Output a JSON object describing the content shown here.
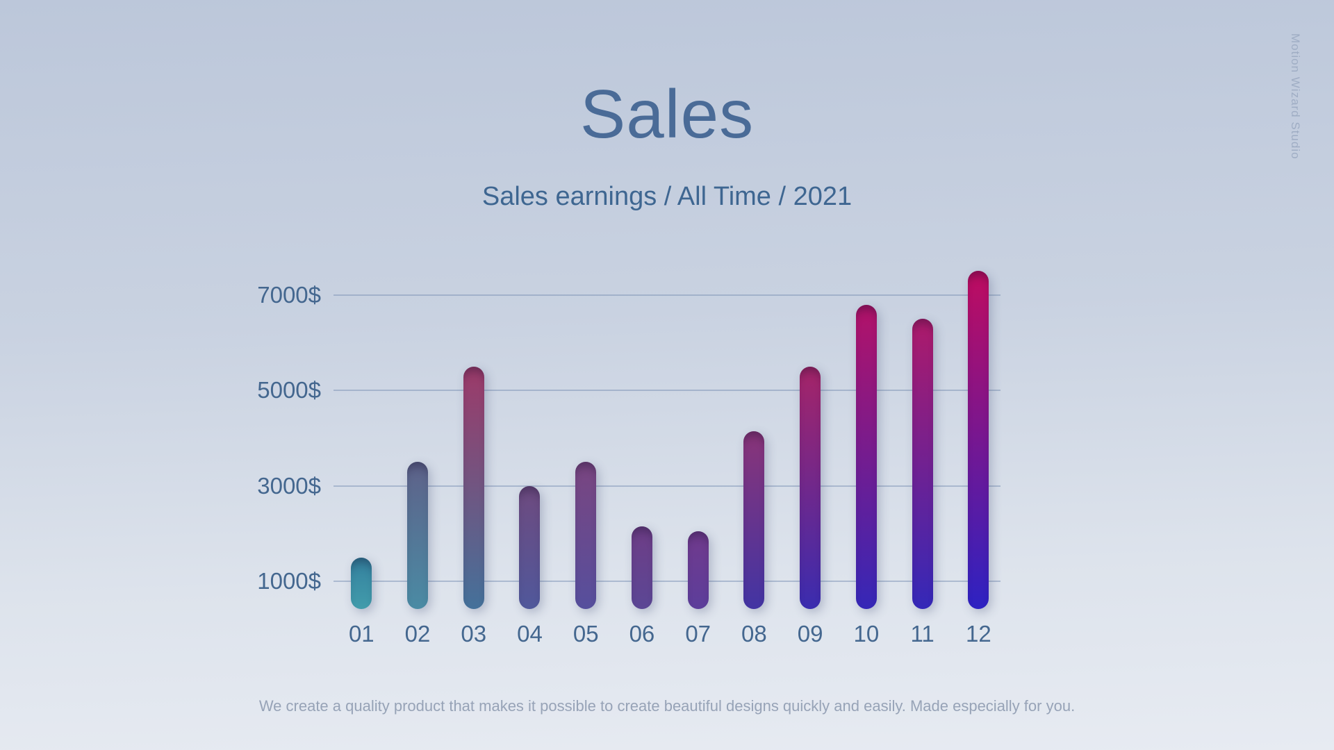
{
  "watermark": "Motion Wizard Studio",
  "header": {
    "title": "Sales",
    "subtitle": "Sales earnings / All Time / 2021"
  },
  "footer": {
    "text": "We create a quality product that makes it possible to create beautiful designs quickly and easily. Made especially for you."
  },
  "colors": {
    "background_top": "#bcc7da",
    "background_bottom": "#e7ebf2",
    "title_text": "#4a6b97",
    "subtitle_text": "#3e6691",
    "axis_label_text": "#44678f",
    "gridline": "#7c91b4",
    "footer_text": "#97a3b7",
    "watermark_text": "#9fadc4"
  },
  "chart_data": {
    "type": "bar",
    "title": "Sales",
    "subtitle": "Sales earnings / All Time / 2021",
    "xlabel": "",
    "ylabel": "",
    "unit": "$",
    "categories": [
      "01",
      "02",
      "03",
      "04",
      "05",
      "06",
      "07",
      "08",
      "09",
      "10",
      "11",
      "12"
    ],
    "values": [
      1500,
      3500,
      5500,
      3000,
      3500,
      2150,
      2050,
      4150,
      5500,
      6800,
      6500,
      7500
    ],
    "ylim": [
      0,
      8000
    ],
    "grid": "horizontal",
    "legend": "none",
    "y_ticks": [
      {
        "label": "7000$",
        "value": 7000
      },
      {
        "label": "5000$",
        "value": 5000
      },
      {
        "label": "3000$",
        "value": 3000
      },
      {
        "label": "1000$",
        "value": 1000
      }
    ],
    "bar_gradients": [
      {
        "top": "#34809e",
        "bottom": "#429cab"
      },
      {
        "top": "#5e6189",
        "bottom": "#4a8ba4"
      },
      {
        "top": "#9d3a69",
        "bottom": "#44719a"
      },
      {
        "top": "#6e4a7f",
        "bottom": "#50589b"
      },
      {
        "top": "#7a4580",
        "bottom": "#564f9d"
      },
      {
        "top": "#6e3d86",
        "bottom": "#5b4795"
      },
      {
        "top": "#713a8c",
        "bottom": "#5c3e9b"
      },
      {
        "top": "#8a3478",
        "bottom": "#4234a3"
      },
      {
        "top": "#a62468",
        "bottom": "#3a2caf"
      },
      {
        "top": "#b31268",
        "bottom": "#3527b7"
      },
      {
        "top": "#ae1a6a",
        "bottom": "#3428b8"
      },
      {
        "top": "#bf0c60",
        "bottom": "#2d22c2"
      }
    ]
  }
}
